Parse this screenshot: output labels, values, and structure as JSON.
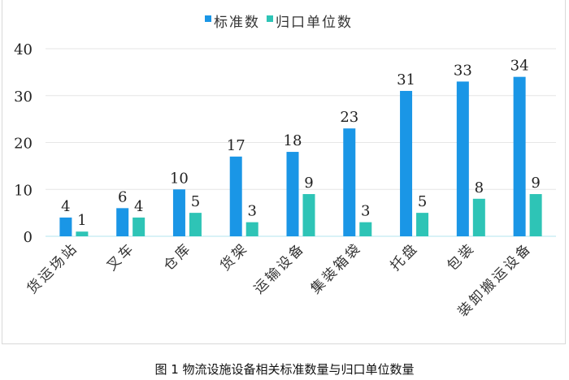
{
  "chart_data": {
    "type": "bar",
    "categories": [
      "货运场站",
      "叉车",
      "仓库",
      "货架",
      "运输设备",
      "集装箱袋",
      "托盘",
      "包装",
      "装卸搬运设备"
    ],
    "series": [
      {
        "name": "标准数",
        "values": [
          4,
          6,
          10,
          17,
          18,
          23,
          31,
          33,
          34
        ],
        "color": "#1a96e6"
      },
      {
        "name": "归口单位数",
        "values": [
          1,
          4,
          5,
          3,
          9,
          3,
          5,
          8,
          9
        ],
        "color": "#2ec4b6"
      }
    ],
    "ylim": [
      0,
      40
    ],
    "yticks": [
      0,
      10,
      20,
      30,
      40
    ],
    "grid": true,
    "legend": "top",
    "data_labels": true
  },
  "caption": "图 1 物流设施设备相关标准数量与归口单位数量"
}
